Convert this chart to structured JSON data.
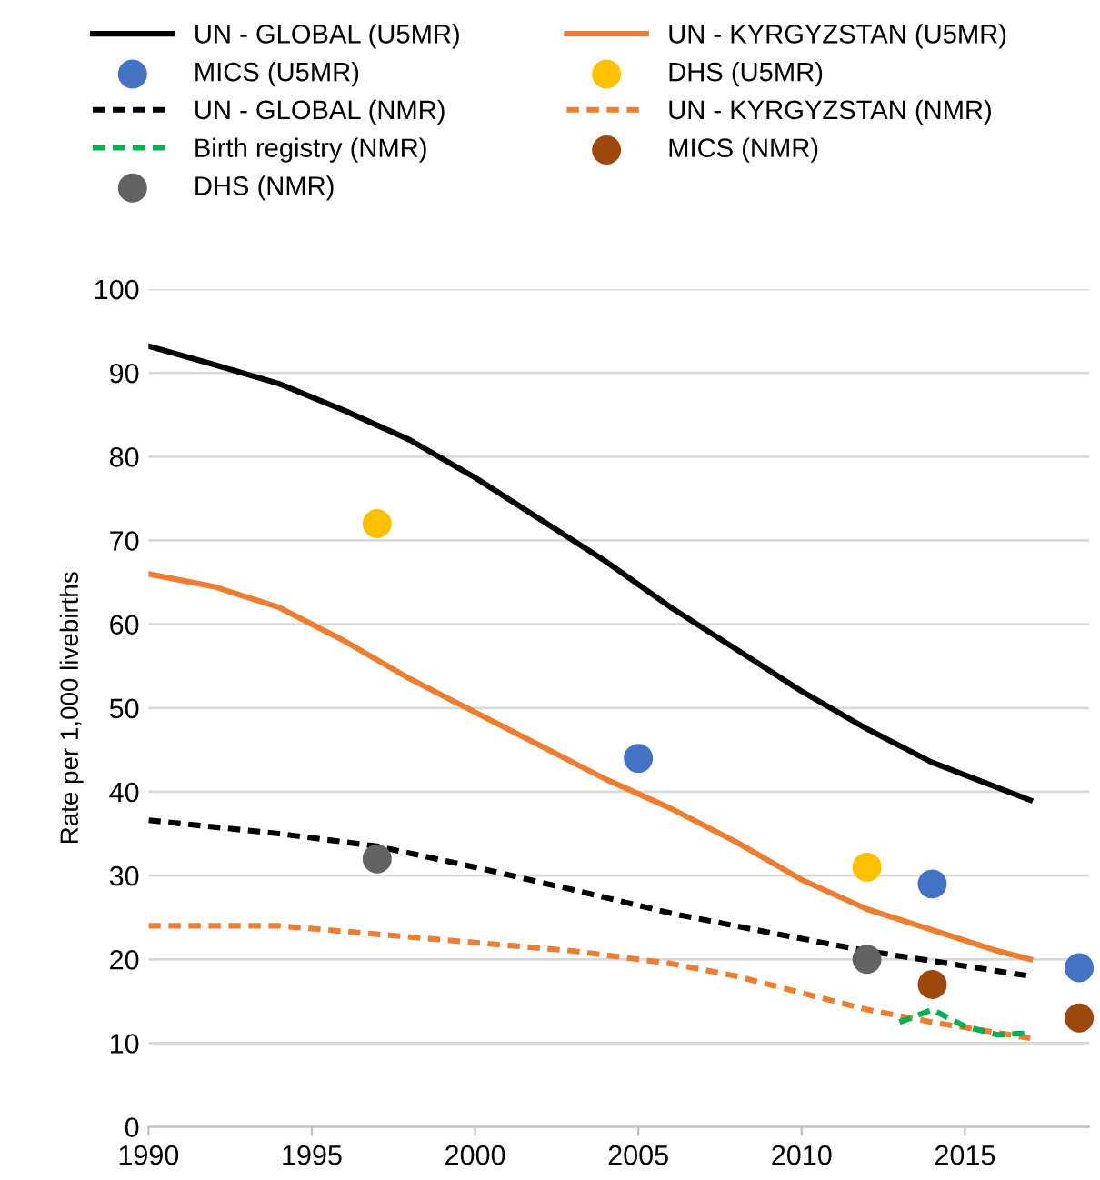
{
  "chart_data": {
    "type": "line",
    "ylabel": "Rate per 1,000 livebirths",
    "xlim": [
      1990,
      2018.8
    ],
    "xticks": [
      1990,
      1995,
      2000,
      2005,
      2010,
      2015
    ],
    "ylim": [
      0,
      100
    ],
    "yticks": [
      0,
      10,
      20,
      30,
      40,
      50,
      60,
      70,
      80,
      90,
      100
    ],
    "grid": "y",
    "legend": "top",
    "series": [
      {
        "name": "UN - GLOBAL (U5MR)",
        "color": "#000000",
        "line_style": "solid",
        "x": [
          1990,
          1992,
          1994,
          1996,
          1998,
          2000,
          2002,
          2004,
          2006,
          2008,
          2010,
          2012,
          2014,
          2016,
          2017
        ],
        "values": [
          93.2,
          91,
          88.7,
          85.5,
          82,
          77.5,
          72.5,
          67.5,
          62,
          57,
          52,
          47.5,
          43.5,
          40.5,
          39
        ]
      },
      {
        "name": "UN - KYRGYZSTAN (U5MR)",
        "color": "#ed7d31",
        "line_style": "solid",
        "x": [
          1990,
          1992,
          1994,
          1996,
          1998,
          2000,
          2002,
          2004,
          2006,
          2008,
          2010,
          2012,
          2014,
          2016,
          2017
        ],
        "values": [
          66,
          64.5,
          62,
          58,
          53.5,
          49.5,
          45.5,
          41.5,
          38,
          34,
          29.5,
          26,
          23.5,
          21,
          20
        ]
      },
      {
        "name": "MICS (U5MR)",
        "color": "#4472c4",
        "type": "scatter",
        "marker": "circle",
        "x": [
          2005,
          2014,
          2018.5
        ],
        "values": [
          44,
          29,
          19
        ]
      },
      {
        "name": "DHS (U5MR)",
        "color": "#ffc000",
        "type": "scatter",
        "marker": "circle",
        "x": [
          1997,
          2012
        ],
        "values": [
          72,
          31
        ]
      },
      {
        "name": "UN - GLOBAL (NMR)",
        "color": "#000000",
        "line_style": "dashed",
        "x": [
          1990,
          1994,
          1997,
          2000,
          2003,
          2006,
          2009,
          2012,
          2015,
          2017
        ],
        "values": [
          36.6,
          35,
          33.5,
          31,
          28.3,
          25.5,
          23.2,
          21,
          19.2,
          18
        ]
      },
      {
        "name": "UN - KYRGYZSTAN (NMR)",
        "color": "#ed7d31",
        "line_style": "dashed",
        "x": [
          1990,
          1994,
          1997,
          2000,
          2003,
          2006,
          2008,
          2010,
          2012,
          2014,
          2017
        ],
        "values": [
          24,
          24,
          23,
          22,
          21,
          19.5,
          18,
          16,
          14,
          12.5,
          10.6
        ]
      },
      {
        "name": "Birth registry (NMR)",
        "color": "#00b050",
        "line_style": "dashed",
        "x": [
          2013,
          2014,
          2015,
          2016,
          2017
        ],
        "values": [
          12.5,
          14,
          12,
          11,
          11.2
        ]
      },
      {
        "name": "MICS (NMR)",
        "color": "#9e480e",
        "type": "scatter",
        "marker": "circle",
        "x": [
          2014,
          2018.5
        ],
        "values": [
          17,
          13
        ]
      },
      {
        "name": "DHS (NMR)",
        "color": "#636363",
        "type": "scatter",
        "marker": "circle",
        "x": [
          1997,
          2012
        ],
        "values": [
          32,
          20
        ]
      }
    ]
  }
}
